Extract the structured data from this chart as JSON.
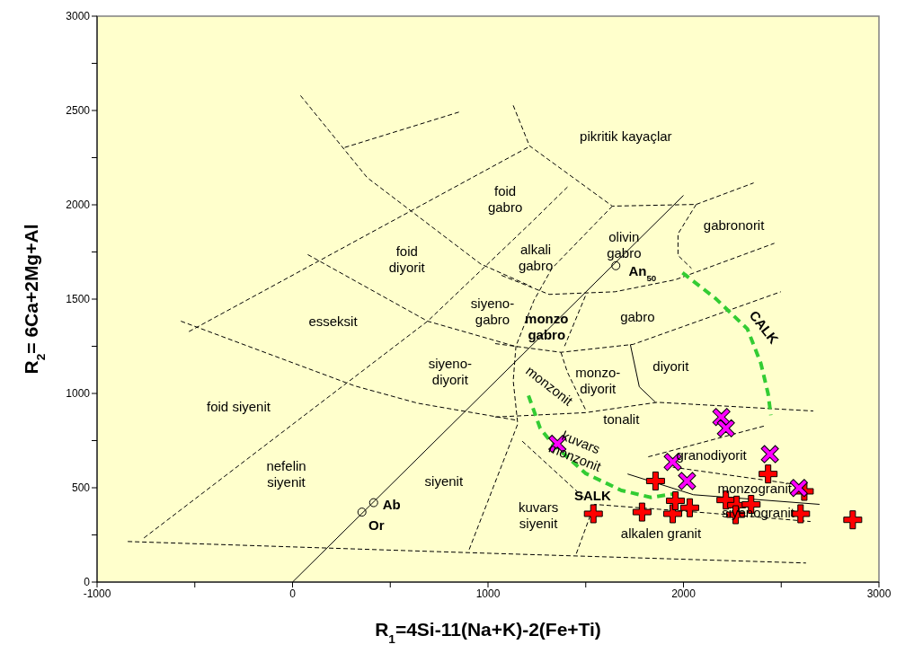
{
  "chart_data": {
    "type": "scatter",
    "xlabel": "R$_{1}$=4Si-11(Na+K)-2(Fe+Ti)",
    "ylabel": "R$_{2}$= 6Ca+2Mg+Al",
    "xlim": [
      -1000,
      3000
    ],
    "ylim": [
      0,
      3000
    ],
    "xticks": [
      -1000,
      {
        "value": -500,
        "label": null
      },
      0,
      {
        "value": 500,
        "label": null
      },
      1000,
      {
        "value": 1500,
        "label": null
      },
      2000,
      {
        "value": 2500,
        "label": null
      },
      3000
    ],
    "yticks": [
      0,
      {
        "value": 250,
        "label": null
      },
      500,
      {
        "value": 750,
        "label": null
      },
      1000,
      {
        "value": 1250,
        "label": null
      },
      1500,
      {
        "value": 1750,
        "label": null
      },
      2000,
      {
        "value": 2250,
        "label": null
      },
      2500,
      {
        "value": 2750,
        "label": null
      },
      3000
    ],
    "series": [
      {
        "type": "line",
        "color": "#000000",
        "line_style": "solid",
        "marker": "none",
        "x": [
          0,
          2000
        ],
        "values": [
          0,
          2050
        ]
      },
      {
        "type": "line",
        "color": "#000000",
        "line_style": "dashed",
        "marker": "none",
        "x": [
          -843,
          899,
          2627
        ],
        "values": [
          215,
          156,
          101
        ]
      },
      {
        "type": "line",
        "color": "#000000",
        "line_style": "dashed",
        "marker": "none",
        "x": [
          -760,
          691,
          1221,
          1415
        ],
        "values": [
          234,
          1383,
          1906,
          2103
        ]
      },
      {
        "type": "line",
        "color": "#000000",
        "line_style": "dashed",
        "marker": "none",
        "x": [
          -530,
          1203
        ],
        "values": [
          1328,
          2304
        ]
      },
      {
        "type": "line",
        "color": "#000000",
        "line_style": "dashed",
        "marker": "none",
        "x": [
          -571,
          318,
          641,
          1152
        ],
        "values": [
          1383,
          1040,
          948,
          857
        ]
      },
      {
        "type": "line",
        "color": "#000000",
        "line_style": "dashed",
        "marker": "none",
        "x": [
          78,
          691,
          1152
        ],
        "values": [
          1736,
          1383,
          1246
        ]
      },
      {
        "type": "line",
        "color": "#000000",
        "line_style": "dashed",
        "marker": "none",
        "x": [
          41,
          382,
          963,
          1221
        ],
        "values": [
          2579,
          2144,
          1686,
          1567
        ]
      },
      {
        "type": "line",
        "color": "#000000",
        "line_style": "dashed",
        "marker": "none",
        "x": [
          267,
          853
        ],
        "values": [
          2304,
          2492
        ]
      },
      {
        "type": "line",
        "color": "#000000",
        "line_style": "dashed",
        "marker": "none",
        "x": [
          1129,
          1212,
          1636,
          2065,
          2359
        ],
        "values": [
          2527,
          2313,
          1993,
          2002,
          2116
        ]
      },
      {
        "type": "line",
        "color": "#000000",
        "line_style": "dashed",
        "marker": "none",
        "x": [
          1636,
          1327,
          1235,
          1143,
          1129,
          1152,
          899
        ],
        "values": [
          1993,
          1663,
          1493,
          1251,
          1067,
          838,
          160
        ]
      },
      {
        "type": "line",
        "color": "#000000",
        "line_style": "dashed",
        "marker": "none",
        "x": [
          1069,
          1313,
          1650,
          1959,
          2465
        ],
        "values": [
          1626,
          1525,
          1539,
          1603,
          1796
        ]
      },
      {
        "type": "line",
        "color": "#000000",
        "line_style": "dashed",
        "marker": "none",
        "x": [
          2065,
          1972,
          1972,
          2041
        ],
        "values": [
          2002,
          1846,
          1732,
          1663
        ]
      },
      {
        "type": "line",
        "color": "#000000",
        "line_style": "dashed",
        "marker": "none",
        "x": [
          1037,
          1373,
          1742,
          2498
        ],
        "values": [
          1264,
          1218,
          1260,
          1539
        ]
      },
      {
        "type": "line",
        "color": "#000000",
        "line_style": "dashed",
        "marker": "none",
        "x": [
          1498,
          1392
        ],
        "values": [
          1516,
          1251
        ]
      },
      {
        "type": "line",
        "color": "#000000",
        "line_style": "dashed",
        "marker": "none",
        "x": [
          1037,
          1498,
          1866,
          2664
        ],
        "values": [
          875,
          898,
          953,
          907
        ]
      },
      {
        "type": "line",
        "color": "#000000",
        "line_style": "solid",
        "marker": "none",
        "x": [
          1728,
          1774,
          1857
        ],
        "values": [
          1260,
          1035,
          953
        ]
      },
      {
        "type": "line",
        "color": "#000000",
        "line_style": "dashed",
        "marker": "none",
        "x": [
          1373,
          1406,
          1498
        ],
        "values": [
          1218,
          1113,
          916
        ]
      },
      {
        "type": "line",
        "color": "#000000",
        "line_style": "dashed",
        "marker": "none",
        "x": [
          1820,
          2419
        ],
        "values": [
          664,
          829
        ]
      },
      {
        "type": "line",
        "color": "#000000",
        "line_style": "dashed",
        "marker": "none",
        "x": [
          1945,
          2571
        ],
        "values": [
          609,
          518
        ]
      },
      {
        "type": "line",
        "color": "#000000",
        "line_style": "solid",
        "marker": "none",
        "x": [
          1714,
          2051,
          2696
        ],
        "values": [
          573,
          463,
          412
        ]
      },
      {
        "type": "line",
        "color": "#000000",
        "line_style": "dashed",
        "marker": "none",
        "x": [
          1452,
          1544,
          2129,
          2650
        ],
        "values": [
          151,
          412,
          366,
          321
        ]
      },
      {
        "type": "line",
        "color": "#000000",
        "line_style": "dashed",
        "marker": "none",
        "x": [
          1175,
          1498
        ],
        "values": [
          747,
          440
        ]
      },
      {
        "type": "line",
        "color": "#33cc33",
        "line_style": "dashed",
        "marker": "none",
        "x": [
          1995,
          2166,
          2327,
          2396,
          2433,
          2447
        ],
        "values": [
          1640,
          1502,
          1342,
          1159,
          998,
          884
        ]
      },
      {
        "type": "line",
        "color": "#33cc33",
        "line_style": "dashed",
        "marker": "none",
        "x": [
          1207,
          1267,
          1327,
          1498,
          1682,
          1834,
          1980
        ],
        "values": [
          989,
          815,
          737,
          577,
          486,
          449,
          472
        ]
      },
      {
        "color": "#000000",
        "marker": "circle",
        "x": [
          415,
          355,
          1654
        ],
        "values": [
          421,
          371,
          1677
        ]
      },
      {
        "color": "#ff0000",
        "marker": "cross",
        "x": [
          1857,
          2433,
          2618,
          1539,
          1788,
          1945,
          1959,
          2032,
          2217,
          2272,
          2267,
          2346,
          2599,
          2866
        ],
        "values": [
          536,
          573,
          481,
          362,
          371,
          362,
          431,
          394,
          435,
          408,
          357,
          412,
          362,
          330
        ]
      },
      {
        "color": "#ff00ff",
        "marker": "x",
        "x": [
          1355,
          2194,
          2217,
          1945,
          2018,
          2442,
          2590
        ],
        "values": [
          733,
          875,
          815,
          637,
          536,
          678,
          499
        ]
      }
    ],
    "annotations": [
      "pikritik kayaçlar",
      "foid\ngabro",
      "foid\ndiyorit",
      "alkali\ngabro",
      "olivin\ngabro",
      "gabronorit",
      "An$_{50}$",
      "esseksit",
      "siyeno-\ngabro",
      "monzo\ngabro",
      "gabro",
      "siyeno-\ndiyorit",
      "monzo-\ndiyorit",
      "diyorit",
      "monzonit",
      "foid siyenit",
      "tonalit",
      "kuvars\nmonzonit",
      "granodiyorit",
      "nefelin\nsiyenit",
      "siyenit",
      "monzogranit",
      "SALK",
      "kuvars\nsiyenit",
      "siyenogranit",
      "alkalen granit",
      "Ab",
      "Or",
      "CALK"
    ]
  }
}
